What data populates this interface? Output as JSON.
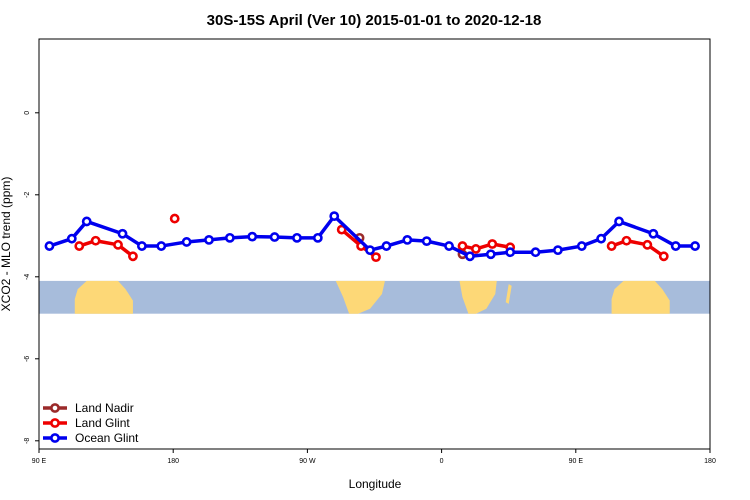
{
  "chart_data": {
    "type": "line",
    "title": "30S-15S April (Ver 10)   2015-01-01 to 2020-12-18",
    "xlabel": "Longitude",
    "ylabel": "XCO2 - MLO trend (ppm)",
    "xlim": [
      90,
      540
    ],
    "ylim": [
      -8.2,
      1.8
    ],
    "x_ticks": [
      {
        "value": 90,
        "label": "90 E"
      },
      {
        "value": 180,
        "label": "180"
      },
      {
        "value": 270,
        "label": "90 W"
      },
      {
        "value": 360,
        "label": "0"
      },
      {
        "value": 450,
        "label": "90 E"
      },
      {
        "value": 540,
        "label": "180"
      }
    ],
    "y_ticks": [
      {
        "value": 0,
        "label": "0"
      },
      {
        "value": -2,
        "label": "-2"
      },
      {
        "value": -4,
        "label": "-4"
      },
      {
        "value": -6,
        "label": "-6"
      },
      {
        "value": -8,
        "label": "-8"
      }
    ],
    "map_strip": {
      "ymin": -4.9,
      "ymax": -4.1,
      "ocean_color": "#a7bcdb",
      "land_color": "#fdd877"
    },
    "legend_position": "bottom-left",
    "series": [
      {
        "name": "Land Nadir",
        "color": "#9b2a2a",
        "segments": [
          [
            [
              305,
              -3.05
            ]
          ],
          [
            [
              374,
              -3.45
            ]
          ]
        ]
      },
      {
        "name": "Land Glint",
        "color": "#ee0000",
        "segments": [
          [
            [
              117,
              -3.25
            ],
            [
              128,
              -3.12
            ],
            [
              143,
              -3.22
            ],
            [
              153,
              -3.5
            ]
          ],
          [
            [
              181,
              -2.58
            ]
          ],
          [
            [
              293,
              -2.85
            ],
            [
              306,
              -3.25
            ],
            [
              316,
              -3.52
            ]
          ],
          [
            [
              374,
              -3.25
            ],
            [
              383,
              -3.32
            ],
            [
              394,
              -3.2
            ],
            [
              406,
              -3.28
            ]
          ],
          [
            [
              474,
              -3.25
            ],
            [
              484,
              -3.12
            ],
            [
              498,
              -3.22
            ],
            [
              509,
              -3.5
            ]
          ]
        ]
      },
      {
        "name": "Ocean Glint",
        "color": "#0000ee",
        "segments": [
          [
            [
              97,
              -3.25
            ],
            [
              112,
              -3.07
            ],
            [
              122,
              -2.65
            ],
            [
              146,
              -2.95
            ],
            [
              159,
              -3.25
            ],
            [
              172,
              -3.25
            ],
            [
              189,
              -3.15
            ],
            [
              204,
              -3.1
            ],
            [
              218,
              -3.05
            ],
            [
              233,
              -3.02
            ],
            [
              248,
              -3.03
            ],
            [
              263,
              -3.05
            ],
            [
              277,
              -3.05
            ],
            [
              288,
              -2.52
            ],
            [
              312,
              -3.35
            ],
            [
              323,
              -3.25
            ],
            [
              337,
              -3.1
            ],
            [
              350,
              -3.13
            ],
            [
              365,
              -3.25
            ],
            [
              379,
              -3.5
            ],
            [
              393,
              -3.45
            ],
            [
              406,
              -3.4
            ],
            [
              423,
              -3.4
            ],
            [
              438,
              -3.35
            ],
            [
              454,
              -3.25
            ],
            [
              467,
              -3.07
            ],
            [
              479,
              -2.65
            ],
            [
              502,
              -2.95
            ],
            [
              517,
              -3.25
            ],
            [
              530,
              -3.25
            ]
          ]
        ]
      }
    ]
  }
}
